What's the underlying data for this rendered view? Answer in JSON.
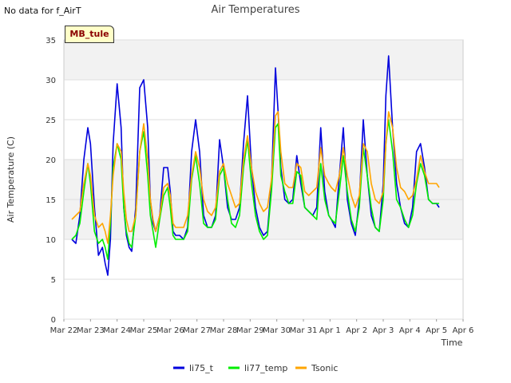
{
  "note": "No data for f_AirT",
  "badge": "MB_tule",
  "chart_data": {
    "type": "line",
    "title": "Air Temperatures",
    "xlabel": "Time",
    "ylabel": "Air Temperature (C)",
    "x_ticks": [
      "Mar 22",
      "Mar 23",
      "Mar 24",
      "Mar 25",
      "Mar 26",
      "Mar 27",
      "Mar 28",
      "Mar 29",
      "Mar 30",
      "Mar 31",
      "Apr 1",
      "Apr 2",
      "Apr 3",
      "Apr 4",
      "Apr 5",
      "Apr 6"
    ],
    "y_ticks": [
      "0",
      "5",
      "10",
      "15",
      "20",
      "25",
      "30",
      "35"
    ],
    "xlim": [
      0,
      15
    ],
    "ylim": [
      0,
      35
    ],
    "grid": true,
    "legend": "bottom",
    "series": [
      {
        "name": "li75_t",
        "color": "#0000dd",
        "x": [
          0.3,
          0.45,
          0.6,
          0.75,
          0.9,
          1.0,
          1.15,
          1.3,
          1.45,
          1.55,
          1.65,
          1.75,
          1.85,
          2.0,
          2.15,
          2.25,
          2.35,
          2.45,
          2.55,
          2.7,
          2.85,
          3.0,
          3.15,
          3.25,
          3.35,
          3.45,
          3.6,
          3.75,
          3.9,
          4.0,
          4.1,
          4.2,
          4.35,
          4.5,
          4.65,
          4.8,
          4.95,
          5.1,
          5.25,
          5.4,
          5.55,
          5.7,
          5.85,
          6.0,
          6.15,
          6.3,
          6.45,
          6.6,
          6.75,
          6.9,
          7.05,
          7.2,
          7.35,
          7.5,
          7.65,
          7.8,
          7.95,
          8.05,
          8.15,
          8.3,
          8.45,
          8.6,
          8.75,
          8.9,
          9.05,
          9.2,
          9.35,
          9.5,
          9.65,
          9.8,
          9.95,
          10.05,
          10.2,
          10.35,
          10.5,
          10.65,
          10.8,
          10.95,
          11.1,
          11.25,
          11.4,
          11.55,
          11.7,
          11.85,
          12.0,
          12.1,
          12.2,
          12.35,
          12.5,
          12.65,
          12.8,
          12.95,
          13.1,
          13.25,
          13.4,
          13.55,
          13.7,
          13.85,
          14.0,
          14.1
        ],
        "values": [
          10,
          9.5,
          13,
          20,
          24,
          22,
          14,
          8,
          9,
          7,
          5.5,
          10,
          22,
          29.5,
          24,
          14,
          10.5,
          9,
          8.5,
          14,
          29,
          30,
          24,
          15,
          12,
          11,
          13,
          19,
          19,
          16,
          11,
          10.5,
          10.5,
          10,
          11.5,
          21,
          25,
          21,
          13,
          11.5,
          11.5,
          13,
          22.5,
          19,
          14,
          12.5,
          12.5,
          14,
          22,
          28,
          19,
          14,
          11.5,
          10.5,
          11,
          17,
          31.5,
          26,
          19,
          15,
          14.5,
          15,
          20.5,
          17,
          14,
          13.5,
          13,
          14,
          24,
          16,
          13,
          12.5,
          11.5,
          18,
          24,
          15,
          12,
          10.5,
          15,
          25,
          18,
          13,
          11.5,
          11,
          17,
          28,
          33,
          24,
          17,
          14,
          12,
          11.5,
          14,
          21,
          22,
          19,
          15,
          14.5,
          14.5,
          14
        ]
      },
      {
        "name": "li77_temp",
        "color": "#00ee00",
        "x": [
          0.3,
          0.45,
          0.6,
          0.75,
          0.9,
          1.0,
          1.15,
          1.3,
          1.45,
          1.55,
          1.65,
          1.75,
          1.85,
          2.0,
          2.15,
          2.25,
          2.35,
          2.45,
          2.55,
          2.7,
          2.85,
          3.0,
          3.15,
          3.25,
          3.35,
          3.45,
          3.6,
          3.75,
          3.9,
          4.0,
          4.1,
          4.2,
          4.35,
          4.5,
          4.65,
          4.8,
          4.95,
          5.1,
          5.25,
          5.4,
          5.55,
          5.7,
          5.85,
          6.0,
          6.15,
          6.3,
          6.45,
          6.6,
          6.75,
          6.9,
          7.05,
          7.2,
          7.35,
          7.5,
          7.65,
          7.8,
          7.95,
          8.05,
          8.15,
          8.3,
          8.45,
          8.6,
          8.75,
          8.9,
          9.05,
          9.2,
          9.35,
          9.5,
          9.65,
          9.8,
          9.95,
          10.05,
          10.2,
          10.35,
          10.5,
          10.65,
          10.8,
          10.95,
          11.1,
          11.25,
          11.4,
          11.55,
          11.7,
          11.85,
          12.0,
          12.1,
          12.2,
          12.35,
          12.5,
          12.65,
          12.8,
          12.95,
          13.1,
          13.25,
          13.4,
          13.55,
          13.7,
          13.85,
          14.0,
          14.1
        ],
        "values": [
          10,
          10.5,
          12,
          16,
          19.5,
          17,
          11,
          9.5,
          10,
          9,
          7.5,
          12,
          19,
          22,
          20,
          14,
          11,
          9.5,
          9,
          13,
          21,
          23.5,
          18,
          13,
          11,
          9,
          12.5,
          15.5,
          16.5,
          14,
          10.5,
          10,
          10,
          10,
          11,
          17.5,
          20.5,
          17,
          12,
          11.5,
          11.5,
          12.5,
          18,
          19,
          15,
          12,
          11.5,
          13,
          19,
          22.5,
          17,
          13,
          11,
          10,
          10.5,
          16,
          24,
          24.5,
          18,
          16,
          14.5,
          14.5,
          18.5,
          18,
          14,
          13.5,
          13,
          12.5,
          19.5,
          15,
          13,
          12.5,
          12,
          16,
          20.5,
          16,
          12.5,
          11,
          14,
          21.5,
          18,
          14,
          11.5,
          11,
          15,
          22,
          25,
          21,
          15,
          14,
          12.5,
          11.5,
          13,
          17,
          19.5,
          18,
          15,
          14.5,
          14.5,
          14.5
        ]
      },
      {
        "name": "Tsonic",
        "color": "#ffa500",
        "x": [
          0.3,
          0.45,
          0.6,
          0.75,
          0.9,
          1.0,
          1.15,
          1.3,
          1.45,
          1.55,
          1.65,
          1.75,
          1.85,
          2.0,
          2.15,
          2.25,
          2.35,
          2.45,
          2.55,
          2.7,
          2.85,
          3.0,
          3.15,
          3.25,
          3.35,
          3.45,
          3.6,
          3.75,
          3.9,
          4.0,
          4.1,
          4.2,
          4.35,
          4.5,
          4.65,
          4.8,
          4.95,
          5.1,
          5.25,
          5.4,
          5.55,
          5.7,
          5.85,
          6.0,
          6.15,
          6.3,
          6.45,
          6.6,
          6.75,
          6.9,
          7.05,
          7.2,
          7.35,
          7.5,
          7.65,
          7.8,
          7.95,
          8.05,
          8.15,
          8.3,
          8.45,
          8.6,
          8.75,
          8.9,
          9.05,
          9.2,
          9.35,
          9.5,
          9.65,
          9.8,
          9.95,
          10.05,
          10.2,
          10.35,
          10.5,
          10.65,
          10.8,
          10.95,
          11.1,
          11.25,
          11.4,
          11.55,
          11.7,
          11.85,
          12.0,
          12.1,
          12.2,
          12.35,
          12.5,
          12.65,
          12.8,
          12.95,
          13.1,
          13.25,
          13.4,
          13.55,
          13.7,
          13.85,
          14.0,
          14.1
        ],
        "values": [
          12.5,
          13,
          13.5,
          17,
          19.5,
          18,
          13,
          11.5,
          12,
          11,
          9.5,
          13,
          18,
          22,
          21,
          16,
          12.5,
          11,
          11,
          13,
          21,
          24.5,
          20,
          15,
          12.5,
          11,
          13,
          16.5,
          17,
          15.5,
          12,
          11.5,
          11.5,
          11.5,
          13,
          18,
          21,
          19,
          15,
          13.5,
          13,
          14,
          18.5,
          19.5,
          17,
          15.5,
          14,
          14.5,
          20,
          23,
          19,
          16,
          14.5,
          13.5,
          14,
          17.5,
          25.5,
          26,
          21,
          17,
          16.5,
          16.5,
          19.5,
          19,
          16,
          15.5,
          16,
          16.5,
          21.5,
          18,
          17,
          16.5,
          16,
          18,
          21.5,
          18,
          15.5,
          14,
          15.5,
          22,
          21,
          17,
          15,
          14.5,
          16,
          22,
          26,
          24,
          19,
          16.5,
          16,
          15,
          15.5,
          17.5,
          20.5,
          18.5,
          17,
          17,
          17,
          16.5
        ]
      }
    ]
  }
}
